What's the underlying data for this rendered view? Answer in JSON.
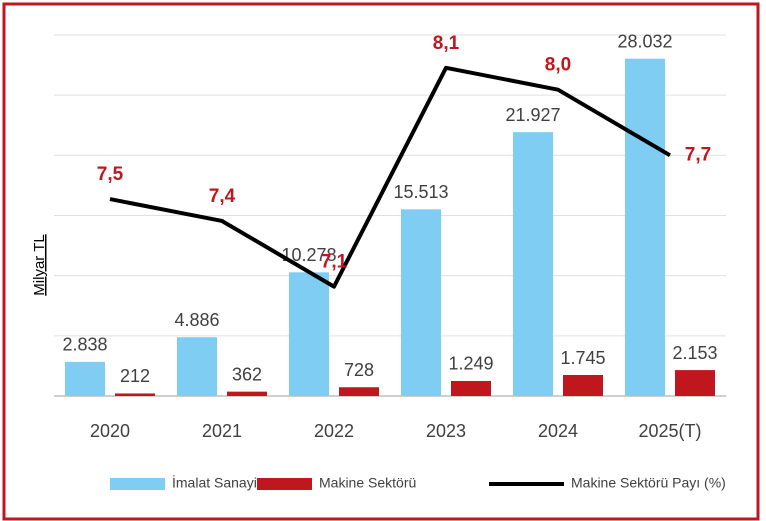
{
  "chart_data": {
    "type": "bar_line",
    "y_label": "Milyar TL",
    "categories": [
      "2020",
      "2021",
      "2022",
      "2023",
      "2024",
      "2025(T)"
    ],
    "ylim": [
      0,
      30000
    ],
    "yticks": [
      0,
      5000,
      10000,
      15000,
      20000,
      25000,
      30000
    ],
    "grid": true,
    "y2lim": [
      6.6,
      8.25
    ],
    "legend": "bottom",
    "series": [
      {
        "name": "İmalat Sanayi",
        "color": "#7fcdf2",
        "type": "bar",
        "values": [
          2838,
          4886,
          10278,
          15513,
          21927,
          28032
        ],
        "value_labels": [
          "2.838",
          "4.886",
          "10.278",
          "15.513",
          "21.927",
          "28.032"
        ]
      },
      {
        "name": "Makine Sektörü",
        "color": "#c0161d",
        "type": "bar",
        "values": [
          212,
          362,
          728,
          1249,
          1745,
          2153
        ],
        "value_labels": [
          "212",
          "362",
          "728",
          "1.249",
          "1.745",
          "2.153"
        ]
      },
      {
        "name": "Makine Sektörü Payı (%)",
        "color": "#000000",
        "type": "line",
        "axis": "y2",
        "label_color": "#c0161d",
        "values": [
          7.5,
          7.4,
          7.1,
          8.1,
          8.0,
          7.7
        ],
        "value_labels": [
          "7,5",
          "7,4",
          "7,1",
          "8,1",
          "8,0",
          "7,7"
        ]
      }
    ]
  }
}
